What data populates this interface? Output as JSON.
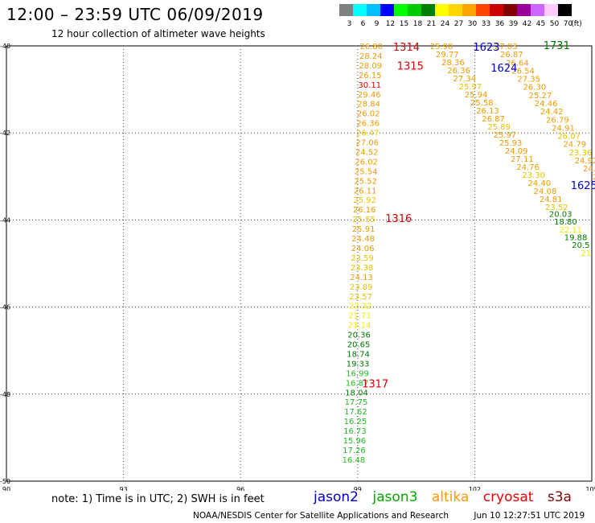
{
  "header": {
    "title": "12:00 – 23:59 UTC 06/09/2019",
    "subtitle": "12 hour collection of altimeter wave heights"
  },
  "colorbar": {
    "unit_label": "(ft)",
    "bins": [
      {
        "label": "3",
        "color": "#808080"
      },
      {
        "label": "6",
        "color": "#00ffff"
      },
      {
        "label": "9",
        "color": "#00bfff"
      },
      {
        "label": "12",
        "color": "#0000ff"
      },
      {
        "label": "15",
        "color": "#00ff00"
      },
      {
        "label": "18",
        "color": "#00cc00"
      },
      {
        "label": "21",
        "color": "#008000"
      },
      {
        "label": "24",
        "color": "#ffff00"
      },
      {
        "label": "27",
        "color": "#ffd700"
      },
      {
        "label": "30",
        "color": "#ffa500"
      },
      {
        "label": "33",
        "color": "#ff4500"
      },
      {
        "label": "36",
        "color": "#cc0000"
      },
      {
        "label": "39",
        "color": "#800000"
      },
      {
        "label": "42",
        "color": "#990099"
      },
      {
        "label": "45",
        "color": "#cc66ff"
      },
      {
        "label": "50",
        "color": "#ffccff"
      },
      {
        "label": "70",
        "color": "#000000"
      }
    ]
  },
  "map": {
    "lon_range": [
      90,
      105
    ],
    "lat_range": [
      -50,
      -40
    ],
    "lon_ticks": [
      "90",
      "93",
      "96",
      "99",
      "102",
      "105"
    ],
    "lat_ticks": [
      "-40",
      "-42",
      "-44",
      "-46",
      "-48",
      "-50"
    ]
  },
  "height_colors": {
    "dgreen": "#007700",
    "green": "#22bb22",
    "yellow": "#eeee00",
    "gold": "#e6c200",
    "orange": "#ee9900",
    "red": "#dd0000"
  },
  "tracks": [
    {
      "name": "track-1314-1317",
      "lon_start": 99.35,
      "lat_start": -40.0,
      "lon_end": 98.9,
      "lat_end": -49.5,
      "values": [
        {
          "v": "26.80",
          "c": "orange"
        },
        {
          "v": "28.24",
          "c": "orange"
        },
        {
          "v": "28.09",
          "c": "orange"
        },
        {
          "v": "26.15",
          "c": "orange"
        },
        {
          "v": "30.11",
          "c": "red"
        },
        {
          "v": "29.46",
          "c": "orange"
        },
        {
          "v": "28.84",
          "c": "orange"
        },
        {
          "v": "26.02",
          "c": "orange"
        },
        {
          "v": "26.36",
          "c": "orange"
        },
        {
          "v": "26.47",
          "c": "gold"
        },
        {
          "v": "27.06",
          "c": "orange"
        },
        {
          "v": "24.52",
          "c": "orange"
        },
        {
          "v": "26.02",
          "c": "orange"
        },
        {
          "v": "25.54",
          "c": "orange"
        },
        {
          "v": "25.52",
          "c": "orange"
        },
        {
          "v": "26.11",
          "c": "orange"
        },
        {
          "v": "25.92",
          "c": "gold"
        },
        {
          "v": "26.16",
          "c": "orange"
        },
        {
          "v": "25.55",
          "c": "gold"
        },
        {
          "v": "25.91",
          "c": "orange"
        },
        {
          "v": "24.48",
          "c": "orange"
        },
        {
          "v": "24.06",
          "c": "orange"
        },
        {
          "v": "23.59",
          "c": "gold"
        },
        {
          "v": "23.38",
          "c": "gold"
        },
        {
          "v": "24.13",
          "c": "orange"
        },
        {
          "v": "23.89",
          "c": "gold"
        },
        {
          "v": "23.57",
          "c": "gold"
        },
        {
          "v": "22.32",
          "c": "yellow"
        },
        {
          "v": "21.71",
          "c": "yellow"
        },
        {
          "v": "21.14",
          "c": "yellow"
        },
        {
          "v": "20.36",
          "c": "dgreen"
        },
        {
          "v": "20.65",
          "c": "dgreen"
        },
        {
          "v": "18.74",
          "c": "dgreen"
        },
        {
          "v": "19.33",
          "c": "dgreen"
        },
        {
          "v": "16.99",
          "c": "green"
        },
        {
          "v": "16.87",
          "c": "green"
        },
        {
          "v": "18.04",
          "c": "dgreen"
        },
        {
          "v": "17.75",
          "c": "green"
        },
        {
          "v": "17.62",
          "c": "green"
        },
        {
          "v": "16.25",
          "c": "green"
        },
        {
          "v": "16.73",
          "c": "green"
        },
        {
          "v": "15.96",
          "c": "green"
        },
        {
          "v": "17.26",
          "c": "green"
        },
        {
          "v": "16.48",
          "c": "green"
        }
      ]
    },
    {
      "name": "track-1623-1625",
      "lon_start": 101.15,
      "lat_start": -40.0,
      "lon_end": 104.1,
      "lat_end": -43.7,
      "values": [
        {
          "v": "25.90",
          "c": "orange"
        },
        {
          "v": "29.77",
          "c": "orange"
        },
        {
          "v": "28.36",
          "c": "orange"
        },
        {
          "v": "26.36",
          "c": "orange"
        },
        {
          "v": "27.34",
          "c": "orange"
        },
        {
          "v": "25.97",
          "c": "gold"
        },
        {
          "v": "25.94",
          "c": "orange"
        },
        {
          "v": "25.58",
          "c": "orange"
        },
        {
          "v": "26.13",
          "c": "orange"
        },
        {
          "v": "26.87",
          "c": "orange"
        },
        {
          "v": "25.89",
          "c": "gold"
        },
        {
          "v": "25.97",
          "c": "orange"
        },
        {
          "v": "25.93",
          "c": "orange"
        },
        {
          "v": "24.09",
          "c": "orange"
        },
        {
          "v": "27.11",
          "c": "orange"
        },
        {
          "v": "24.76",
          "c": "orange"
        },
        {
          "v": "23.30",
          "c": "gold"
        },
        {
          "v": "24.40",
          "c": "orange"
        },
        {
          "v": "24.08",
          "c": "orange"
        },
        {
          "v": "24.81",
          "c": "orange"
        },
        {
          "v": "23.52",
          "c": "gold"
        }
      ]
    },
    {
      "name": "track-1731",
      "lon_start": 102.8,
      "lat_start": -40.0,
      "lon_end": 105.15,
      "lat_end": -43.0,
      "values": [
        {
          "v": "27.03",
          "c": "orange"
        },
        {
          "v": "26.87",
          "c": "orange"
        },
        {
          "v": "26.64",
          "c": "orange"
        },
        {
          "v": "26.54",
          "c": "orange"
        },
        {
          "v": "27.35",
          "c": "orange"
        },
        {
          "v": "26.30",
          "c": "orange"
        },
        {
          "v": "25.27",
          "c": "orange"
        },
        {
          "v": "24.46",
          "c": "orange"
        },
        {
          "v": "24.42",
          "c": "orange"
        },
        {
          "v": "26.79",
          "c": "orange"
        },
        {
          "v": "24.91",
          "c": "orange"
        },
        {
          "v": "26.07",
          "c": "gold"
        },
        {
          "v": "24.79",
          "c": "orange"
        },
        {
          "v": "23.36",
          "c": "gold"
        },
        {
          "v": "24.92",
          "c": "orange"
        },
        {
          "v": "24.8",
          "c": "orange"
        },
        {
          "v": "24",
          "c": "orange"
        }
      ]
    },
    {
      "name": "track-1625-tail",
      "lon_start": 104.2,
      "lat_start": -43.85,
      "lon_end": 104.85,
      "lat_end": -44.75,
      "values": [
        {
          "v": "20.03",
          "c": "dgreen"
        },
        {
          "v": "18.80",
          "c": "dgreen"
        },
        {
          "v": "22.11",
          "c": "yellow"
        },
        {
          "v": "19.88",
          "c": "dgreen"
        },
        {
          "v": "20.5",
          "c": "dgreen"
        },
        {
          "v": "21",
          "c": "yellow"
        }
      ]
    }
  ],
  "pass_labels": [
    {
      "text": "1314",
      "color": "#dd0000",
      "lon": 100.25,
      "lat": -40.02
    },
    {
      "text": "1315",
      "color": "#dd0000",
      "lon": 100.35,
      "lat": -40.45
    },
    {
      "text": "1316",
      "color": "#dd0000",
      "lon": 100.05,
      "lat": -43.96
    },
    {
      "text": "1317",
      "color": "#dd0000",
      "lon": 99.45,
      "lat": -47.75
    },
    {
      "text": "1623",
      "color": "#0000cc",
      "lon": 102.3,
      "lat": -40.02
    },
    {
      "text": "1624",
      "color": "#0000cc",
      "lon": 102.75,
      "lat": -40.5
    },
    {
      "text": "1731",
      "color": "#007700",
      "lon": 104.1,
      "lat": -39.98
    },
    {
      "text": "1625",
      "color": "#0000cc",
      "lon": 104.8,
      "lat": -43.2
    }
  ],
  "note": "note:  1) Time is in UTC;  2) SWH is in feet",
  "satellites": [
    {
      "name": "jason2",
      "color": "#0000cc"
    },
    {
      "name": "jason3",
      "color": "#00aa00"
    },
    {
      "name": "altika",
      "color": "#ff9900"
    },
    {
      "name": "cryosat",
      "color": "#ee0000"
    },
    {
      "name": "s3a",
      "color": "#880000"
    }
  ],
  "footer": {
    "agency": "NOAA/NESDIS Center for Satellite Applications and Research",
    "timestamp": "Jun 10 12:27:51 UTC 2019"
  }
}
